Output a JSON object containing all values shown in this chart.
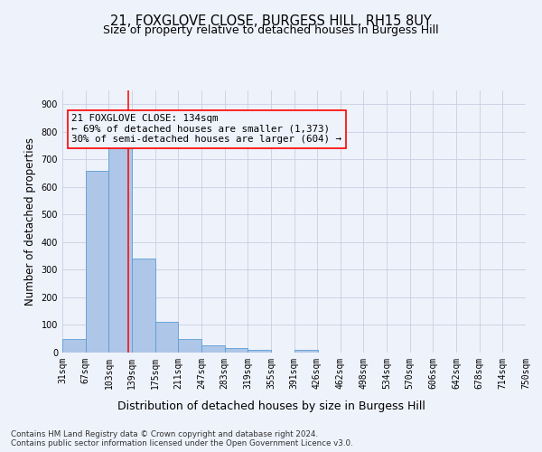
{
  "title_line1": "21, FOXGLOVE CLOSE, BURGESS HILL, RH15 8UY",
  "title_line2": "Size of property relative to detached houses in Burgess Hill",
  "xlabel": "Distribution of detached houses by size in Burgess Hill",
  "ylabel": "Number of detached properties",
  "bin_edges": [
    31,
    67,
    103,
    139,
    175,
    211,
    247,
    283,
    319,
    355,
    391,
    426,
    462,
    498,
    534,
    570,
    606,
    642,
    678,
    714,
    750
  ],
  "bar_heights": [
    50,
    660,
    750,
    340,
    110,
    50,
    25,
    15,
    10,
    0,
    10,
    0,
    0,
    0,
    0,
    0,
    0,
    0,
    0,
    0
  ],
  "bar_color": "#aec6e8",
  "bar_edge_color": "#5a9fd4",
  "red_line_x": 134,
  "annotation_line1": "21 FOXGLOVE CLOSE: 134sqm",
  "annotation_line2": "← 69% of detached houses are smaller (1,373)",
  "annotation_line3": "30% of semi-detached houses are larger (604) →",
  "ylim": [
    0,
    950
  ],
  "yticks": [
    0,
    100,
    200,
    300,
    400,
    500,
    600,
    700,
    800,
    900
  ],
  "footer_text": "Contains HM Land Registry data © Crown copyright and database right 2024.\nContains public sector information licensed under the Open Government Licence v3.0.",
  "background_color": "#eef2fb",
  "grid_color": "#c8cfe0",
  "title_fontsize": 10.5,
  "subtitle_fontsize": 9,
  "tick_label_fontsize": 7,
  "ylabel_fontsize": 8.5,
  "xlabel_fontsize": 9,
  "annotation_fontsize": 7.8
}
